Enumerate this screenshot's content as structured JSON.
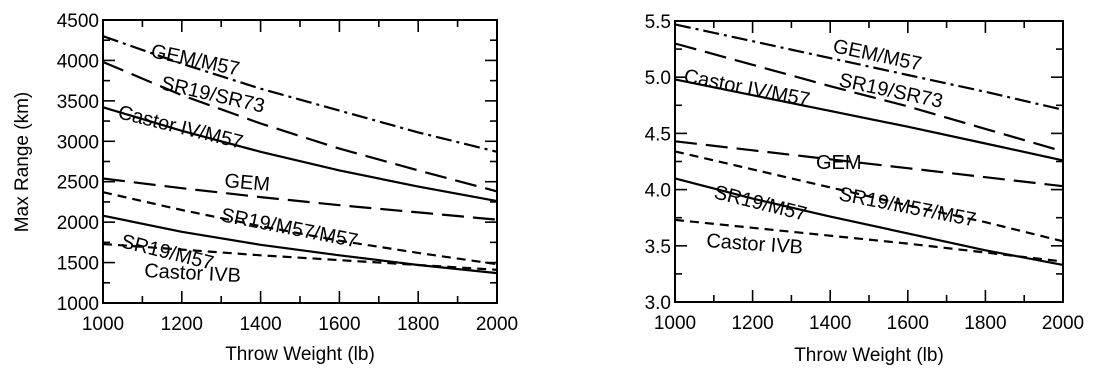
{
  "chart_data": [
    {
      "type": "line",
      "xlabel": "Throw Weight (lb)",
      "ylabel": "Max Range (km)",
      "xlim": [
        1000,
        2000
      ],
      "ylim": [
        1000,
        4500
      ],
      "xticks": [
        "1000",
        "1200",
        "1400",
        "1600",
        "1800",
        "2000"
      ],
      "yticks": [
        "1000",
        "1500",
        "2000",
        "2500",
        "3000",
        "3500",
        "4000",
        "4500"
      ],
      "grid": false,
      "legend": "inline",
      "series": [
        {
          "name": "GEM/M57",
          "style": "dashdot",
          "x": [
            1000,
            1200,
            1400,
            1600,
            1800,
            2000
          ],
          "y": [
            4300,
            3960,
            3650,
            3380,
            3110,
            2870
          ]
        },
        {
          "name": "SR19/SR73",
          "style": "longdash",
          "x": [
            1000,
            1200,
            1400,
            1600,
            1800,
            2000
          ],
          "y": [
            3980,
            3570,
            3220,
            2910,
            2640,
            2380
          ]
        },
        {
          "name": "Castor IV/M57",
          "style": "solid",
          "x": [
            1000,
            1200,
            1400,
            1600,
            1800,
            2000
          ],
          "y": [
            3420,
            3130,
            2870,
            2640,
            2440,
            2260
          ]
        },
        {
          "name": "GEM",
          "style": "longdash",
          "x": [
            1000,
            1200,
            1400,
            1600,
            1800,
            2000
          ],
          "y": [
            2540,
            2420,
            2310,
            2210,
            2120,
            2030
          ]
        },
        {
          "name": "SR19/M57/M57",
          "style": "shortdash",
          "x": [
            1000,
            1200,
            1400,
            1600,
            1800,
            2000
          ],
          "y": [
            2370,
            2150,
            1950,
            1770,
            1620,
            1480
          ]
        },
        {
          "name": "SR19/M57",
          "style": "solid",
          "x": [
            1000,
            1200,
            1400,
            1600,
            1800,
            2000
          ],
          "y": [
            2080,
            1880,
            1720,
            1590,
            1470,
            1370
          ]
        },
        {
          "name": "Castor IVB",
          "style": "shortdash",
          "x": [
            1000,
            1200,
            1400,
            1600,
            1800,
            2000
          ],
          "y": [
            1730,
            1660,
            1590,
            1530,
            1470,
            1410
          ]
        }
      ]
    },
    {
      "type": "line",
      "xlabel": "Throw Weight (lb)",
      "ylabel": "",
      "xlim": [
        1000,
        2000
      ],
      "ylim": [
        3.0,
        5.5
      ],
      "xticks": [
        "1000",
        "1200",
        "1400",
        "1600",
        "1800",
        "2000"
      ],
      "yticks": [
        "3.0",
        "3.5",
        "4.0",
        "4.5",
        "5.0",
        "5.5"
      ],
      "grid": false,
      "legend": "inline",
      "series": [
        {
          "name": "GEM/M57",
          "style": "dashdot",
          "x": [
            1000,
            1200,
            1400,
            1600,
            1800,
            2000
          ],
          "y": [
            5.47,
            5.32,
            5.17,
            5.02,
            4.87,
            4.71
          ]
        },
        {
          "name": "SR19/SR73",
          "style": "longdash",
          "x": [
            1000,
            1200,
            1400,
            1600,
            1800,
            2000
          ],
          "y": [
            5.3,
            5.11,
            4.92,
            4.74,
            4.54,
            4.34
          ]
        },
        {
          "name": "Castor IV/M57",
          "style": "solid",
          "x": [
            1000,
            1200,
            1400,
            1600,
            1800,
            2000
          ],
          "y": [
            4.98,
            4.84,
            4.7,
            4.56,
            4.41,
            4.26
          ]
        },
        {
          "name": "GEM",
          "style": "longdash",
          "x": [
            1000,
            1200,
            1400,
            1600,
            1800,
            2000
          ],
          "y": [
            4.43,
            4.35,
            4.27,
            4.19,
            4.11,
            4.03
          ]
        },
        {
          "name": "SR19/M57/M57",
          "style": "shortdash",
          "x": [
            1000,
            1200,
            1400,
            1600,
            1800,
            2000
          ],
          "y": [
            4.34,
            4.18,
            4.02,
            3.86,
            3.71,
            3.54
          ]
        },
        {
          "name": "SR19/M57",
          "style": "solid",
          "x": [
            1000,
            1200,
            1400,
            1600,
            1800,
            2000
          ],
          "y": [
            4.1,
            3.92,
            3.76,
            3.61,
            3.46,
            3.33
          ]
        },
        {
          "name": "Castor IVB",
          "style": "shortdash",
          "x": [
            1000,
            1200,
            1400,
            1600,
            1800,
            2000
          ],
          "y": [
            3.73,
            3.66,
            3.59,
            3.52,
            3.44,
            3.36
          ]
        }
      ]
    }
  ]
}
